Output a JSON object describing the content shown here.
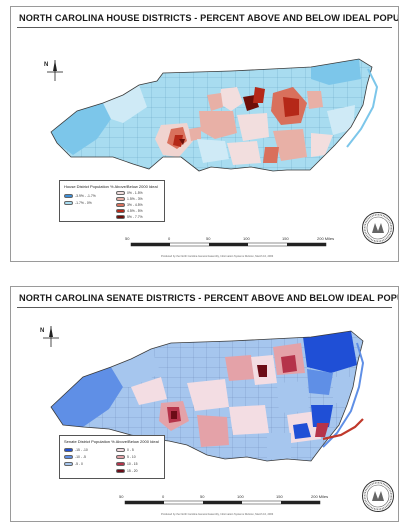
{
  "house": {
    "title": "NORTH CAROLINA HOUSE DISTRICTS - PERCENT ABOVE AND BELOW IDEAL POPULATION",
    "legend_title": "House District Population % Above/Below 2000 Ideal",
    "legend_items": [
      {
        "label": "-3.9% - -1.7%",
        "color": "#3d8fd8"
      },
      {
        "label": "-1.7% - 0%",
        "color": "#a8dcf0"
      },
      {
        "label": "0% - 1.5%",
        "color": "#f2dede"
      },
      {
        "label": "1.5% - 3%",
        "color": "#e8b0a6"
      },
      {
        "label": "3% - 4.5%",
        "color": "#d9705c"
      },
      {
        "label": "4.5% - 5%",
        "color": "#b52818"
      },
      {
        "label": "5% - 7.7%",
        "color": "#6e0e08"
      }
    ],
    "scale_labels": [
      "50",
      "0",
      "50",
      "100",
      "150",
      "200 Miles"
    ],
    "north_label": "N",
    "footnote": "Produced by the North Carolina General Assembly, Information Systems Division, March 10, 2003"
  },
  "senate": {
    "title": "NORTH CAROLINA SENATE DISTRICTS - PERCENT ABOVE AND BELOW IDEAL POPULATION",
    "legend_title": "Senate District Population % Above/Below 2000 Ideal",
    "legend_items": [
      {
        "label": "-15 - -10",
        "color": "#1f4fd6"
      },
      {
        "label": "-10 - -5",
        "color": "#5f8fe6"
      },
      {
        "label": "-5 - 0",
        "color": "#a6c6ee"
      },
      {
        "label": "0 - 5",
        "color": "#f3dde3"
      },
      {
        "label": "5 - 10",
        "color": "#e4a2a8"
      },
      {
        "label": "10 - 15",
        "color": "#b5334a"
      },
      {
        "label": "15 - 20",
        "color": "#6b0b16"
      }
    ],
    "scale_labels": [
      "50",
      "0",
      "50",
      "100",
      "150",
      "200 Miles"
    ],
    "north_label": "N",
    "footnote": "Produced by the North Carolina General Assembly, Information Systems Division, March 10, 2003"
  },
  "colors": {
    "state_outline": "#3a3a3a",
    "house_base": "#a8dcf0",
    "senate_base": "#a6c6ee",
    "panel_border": "#9a9a9a"
  }
}
